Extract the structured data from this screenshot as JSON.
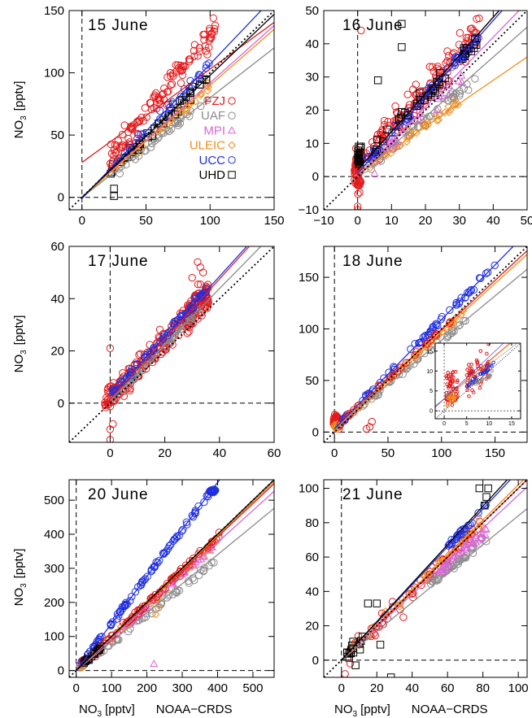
{
  "colors": {
    "FZJ": "#e31a1c",
    "UAF": "#8c8c8c",
    "MPI": "#d966d6",
    "ULEIC": "#f28c1a",
    "UCC": "#1f2ee0",
    "UHD": "#000000"
  },
  "legend": [
    {
      "name": "FZJ",
      "marker": "circle"
    },
    {
      "name": "UAF",
      "marker": "circle"
    },
    {
      "name": "MPI",
      "marker": "triangle"
    },
    {
      "name": "ULEIC",
      "marker": "diamond"
    },
    {
      "name": "UCC",
      "marker": "circle"
    },
    {
      "name": "UHD",
      "marker": "square"
    }
  ],
  "ylabel_base": "NO",
  "ylabel_sub": "3",
  "ylabel_unit": "[pptv]",
  "xlabel_base": "NO",
  "xlabel_sub": "3",
  "xlabel_unit": "[pptv]",
  "xlabel_instrument": "NOAA−CRDS",
  "chart_data": [
    {
      "type": "scatter",
      "title": "15 June",
      "xlim": [
        -10,
        150
      ],
      "ylim": [
        -10,
        150
      ],
      "xticks": [
        0,
        50,
        100,
        150
      ],
      "yticks": [
        0,
        50,
        100,
        150
      ],
      "fits": [
        {
          "series": "FZJ",
          "slope": 0.75,
          "intercept": 28
        },
        {
          "series": "UAF",
          "slope": 0.8,
          "intercept": 0
        },
        {
          "series": "MPI",
          "slope": 0.92,
          "intercept": 0
        },
        {
          "series": "ULEIC",
          "slope": 0.9,
          "intercept": 0
        },
        {
          "series": "UCC",
          "slope": 1.08,
          "intercept": -1
        },
        {
          "series": "UHD",
          "slope": 0.98,
          "intercept": 0
        }
      ],
      "clusters": [
        {
          "series": "UAF",
          "x": [
            22,
            100
          ],
          "slope": 0.8,
          "intercept": 0,
          "spread": 5,
          "n": 45
        },
        {
          "series": "ULEIC",
          "x": [
            22,
            100
          ],
          "slope": 0.9,
          "intercept": 0,
          "spread": 5,
          "n": 40
        },
        {
          "series": "UHD",
          "x": [
            22,
            100
          ],
          "slope": 0.98,
          "intercept": 0,
          "spread": 6,
          "n": 40
        },
        {
          "series": "UCC",
          "x": [
            22,
            100
          ],
          "slope": 1.08,
          "intercept": -1,
          "spread": 5,
          "n": 30
        },
        {
          "series": "FZJ",
          "x": [
            22,
            105
          ],
          "slope": 1.25,
          "intercept": 5,
          "spread": 14,
          "n": 110
        }
      ],
      "points": [
        {
          "series": "UHD",
          "x": [
            25,
            25
          ],
          "y": [
            7,
            1
          ]
        },
        {
          "series": "FZJ",
          "x": [
            101,
            104
          ],
          "y": [
            131,
            138
          ]
        }
      ],
      "inset": null
    },
    {
      "type": "scatter",
      "title": "16 June",
      "xlim": [
        -10,
        50
      ],
      "ylim": [
        -10,
        50
      ],
      "xticks": [
        -10,
        0,
        10,
        20,
        30,
        40,
        50
      ],
      "yticks": [
        -10,
        0,
        10,
        20,
        30,
        40,
        50
      ],
      "fits": [
        {
          "series": "FZJ",
          "slope": 1.15,
          "intercept": 2
        },
        {
          "series": "UAF",
          "slope": 0.9,
          "intercept": 0
        },
        {
          "series": "MPI",
          "slope": 1.05,
          "intercept": 0
        },
        {
          "series": "ULEIC",
          "slope": 0.7,
          "intercept": 1
        },
        {
          "series": "UCC",
          "slope": 1.15,
          "intercept": 1
        },
        {
          "series": "UHD",
          "slope": 1.15,
          "intercept": 2
        }
      ],
      "clusters": [
        {
          "series": "FZJ",
          "x": [
            -1,
            1
          ],
          "slope": 0,
          "intercept": 2,
          "spread": 7,
          "n": 60
        },
        {
          "series": "UHD",
          "x": [
            0,
            1
          ],
          "slope": 0,
          "intercept": 6,
          "spread": 4,
          "n": 25
        },
        {
          "series": "FZJ",
          "x": [
            2,
            36
          ],
          "slope": 1.15,
          "intercept": 3,
          "spread": 6,
          "n": 140
        },
        {
          "series": "UAF",
          "x": [
            2,
            36
          ],
          "slope": 0.85,
          "intercept": 0,
          "spread": 2,
          "n": 50
        },
        {
          "series": "ULEIC",
          "x": [
            2,
            30
          ],
          "slope": 0.72,
          "intercept": 1,
          "spread": 2,
          "n": 35
        },
        {
          "series": "MPI",
          "x": [
            3,
            32
          ],
          "slope": 0.95,
          "intercept": 0,
          "spread": 3,
          "n": 30
        },
        {
          "series": "UCC",
          "x": [
            2,
            36
          ],
          "slope": 1.15,
          "intercept": 1,
          "spread": 2,
          "n": 60
        },
        {
          "series": "UHD",
          "x": [
            5,
            36
          ],
          "slope": 1.1,
          "intercept": 2,
          "spread": 4,
          "n": 40
        }
      ],
      "points": [
        {
          "series": "UHD",
          "x": [
            13,
            13,
            6
          ],
          "y": [
            46,
            39,
            29
          ]
        },
        {
          "series": "MPI",
          "x": [
            5
          ],
          "y": [
            1
          ]
        },
        {
          "series": "FZJ",
          "x": [
            0,
            0,
            1
          ],
          "y": [
            -9,
            -10,
            44
          ]
        }
      ],
      "inset": null
    },
    {
      "type": "scatter",
      "title": "17 June",
      "xlim": [
        -15,
        60
      ],
      "ylim": [
        -15,
        60
      ],
      "xticks": [
        0,
        20,
        40,
        60
      ],
      "yticks": [
        0,
        20,
        40,
        60
      ],
      "fits": [
        {
          "series": "FZJ",
          "slope": 1.15,
          "intercept": 1.5
        },
        {
          "series": "UAF",
          "slope": 1.07,
          "intercept": 1
        },
        {
          "series": "UCC",
          "slope": 1.15,
          "intercept": 2.5
        }
      ],
      "clusters": [
        {
          "series": "FZJ",
          "x": [
            -2,
            5
          ],
          "slope": 0.8,
          "intercept": 3,
          "spread": 6,
          "n": 50
        },
        {
          "series": "FZJ",
          "x": [
            5,
            30
          ],
          "slope": 1.15,
          "intercept": 1,
          "spread": 6,
          "n": 120
        },
        {
          "series": "FZJ",
          "x": [
            28,
            36
          ],
          "slope": 1.1,
          "intercept": 2,
          "spread": 8,
          "n": 110
        },
        {
          "series": "UAF",
          "x": [
            1,
            35
          ],
          "slope": 1.07,
          "intercept": 1,
          "spread": 2,
          "n": 50
        },
        {
          "series": "UCC",
          "x": [
            1,
            35
          ],
          "slope": 1.15,
          "intercept": 3,
          "spread": 2,
          "n": 70
        }
      ],
      "points": [
        {
          "series": "FZJ",
          "x": [
            0,
            0,
            1,
            0
          ],
          "y": [
            -14,
            -10,
            -8,
            21
          ]
        },
        {
          "series": "FZJ",
          "x": [
            32,
            33,
            34,
            30
          ],
          "y": [
            54,
            52,
            50,
            48
          ]
        }
      ],
      "inset": null
    },
    {
      "type": "scatter",
      "title": "18 June",
      "xlim": [
        -10,
        180
      ],
      "ylim": [
        -10,
        180
      ],
      "xticks": [
        0,
        50,
        100,
        150
      ],
      "yticks": [
        0,
        50,
        100,
        150
      ],
      "fits": [
        {
          "series": "FZJ",
          "slope": 0.96,
          "intercept": 3
        },
        {
          "series": "UAF",
          "slope": 0.86,
          "intercept": 3
        },
        {
          "series": "ULEIC",
          "slope": 0.94,
          "intercept": 3
        },
        {
          "series": "UCC",
          "slope": 1.06,
          "intercept": 3
        }
      ],
      "clusters": [
        {
          "series": "FZJ",
          "x": [
            -1,
            5
          ],
          "slope": 0,
          "intercept": 10,
          "spread": 8,
          "n": 60
        },
        {
          "series": "ULEIC",
          "x": [
            0,
            4
          ],
          "slope": 0,
          "intercept": 5,
          "spread": 4,
          "n": 20
        },
        {
          "series": "UAF",
          "x": [
            2,
            125
          ],
          "slope": 0.86,
          "intercept": 3,
          "spread": 3,
          "n": 45
        },
        {
          "series": "ULEIC",
          "x": [
            10,
            125
          ],
          "slope": 0.94,
          "intercept": 3,
          "spread": 3,
          "n": 40
        },
        {
          "series": "UCC",
          "x": [
            5,
            152
          ],
          "slope": 1.06,
          "intercept": 3,
          "spread": 3,
          "n": 65
        },
        {
          "series": "FZJ",
          "x": [
            5,
            110
          ],
          "slope": 0.96,
          "intercept": 3,
          "spread": 3,
          "n": 30
        }
      ],
      "points": [
        {
          "series": "FZJ",
          "x": [
            35,
            30,
            33
          ],
          "y": [
            10,
            3,
            5
          ]
        }
      ],
      "inset": {
        "xlim": [
          -2,
          17
        ],
        "ylim": [
          -2,
          17
        ],
        "xticks": [
          0,
          5,
          10,
          15
        ],
        "yticks": [
          0,
          5,
          10,
          15
        ]
      }
    },
    {
      "type": "scatter",
      "title": "20 June",
      "xlim": [
        -20,
        560
      ],
      "ylim": [
        -20,
        560
      ],
      "xticks": [
        0,
        100,
        200,
        300,
        400,
        500
      ],
      "yticks": [
        0,
        100,
        200,
        300,
        400,
        500
      ],
      "fits": [
        {
          "series": "FZJ",
          "slope": 0.98,
          "intercept": 0
        },
        {
          "series": "UAF",
          "slope": 0.85,
          "intercept": 0
        },
        {
          "series": "MPI",
          "slope": 0.94,
          "intercept": 0
        },
        {
          "series": "ULEIC",
          "slope": 0.99,
          "intercept": 0
        },
        {
          "series": "UCC",
          "slope": 1.38,
          "intercept": 0
        },
        {
          "series": "UHD",
          "slope": 1.0,
          "intercept": 0
        }
      ],
      "clusters": [
        {
          "series": "UCC",
          "x": [
            5,
            378
          ],
          "slope": 1.38,
          "intercept": 0,
          "spread": 8,
          "n": 90
        },
        {
          "series": "UCC",
          "x": [
            378,
            395
          ],
          "slope": 0,
          "intercept": 528,
          "spread": 5,
          "n": 25
        },
        {
          "series": "UAF",
          "x": [
            10,
            400
          ],
          "slope": 0.82,
          "intercept": 0,
          "spread": 10,
          "n": 60
        },
        {
          "series": "MPI",
          "x": [
            10,
            390
          ],
          "slope": 0.94,
          "intercept": 0,
          "spread": 8,
          "n": 50
        },
        {
          "series": "ULEIC",
          "x": [
            10,
            400
          ],
          "slope": 0.96,
          "intercept": 0,
          "spread": 10,
          "n": 45
        },
        {
          "series": "FZJ",
          "x": [
            10,
            405
          ],
          "slope": 0.98,
          "intercept": 0,
          "spread": 12,
          "n": 80
        },
        {
          "series": "UHD",
          "x": [
            10,
            80
          ],
          "slope": 0.98,
          "intercept": 0,
          "spread": 5,
          "n": 15
        }
      ],
      "points": [
        {
          "series": "MPI",
          "x": [
            220
          ],
          "y": [
            20
          ]
        },
        {
          "series": "UAF",
          "x": [
            225
          ],
          "y": [
            180
          ]
        },
        {
          "series": "ULEIC",
          "x": [
            225,
            235
          ],
          "y": [
            165,
            190
          ]
        }
      ],
      "inset": null
    },
    {
      "type": "scatter",
      "title": "21 June",
      "xlim": [
        -10,
        105
      ],
      "ylim": [
        -10,
        105
      ],
      "xticks": [
        0,
        20,
        40,
        60,
        80,
        100
      ],
      "yticks": [
        0,
        20,
        40,
        60,
        80,
        100
      ],
      "fits": [
        {
          "series": "FZJ",
          "slope": 1.0,
          "intercept": 0
        },
        {
          "series": "UAF",
          "slope": 0.84,
          "intercept": 0
        },
        {
          "series": "MPI",
          "slope": 0.96,
          "intercept": 0
        },
        {
          "series": "ULEIC",
          "slope": 1.02,
          "intercept": 0
        },
        {
          "series": "UCC",
          "slope": 1.1,
          "intercept": 0
        },
        {
          "series": "UHD",
          "slope": 1.12,
          "intercept": 0
        }
      ],
      "clusters": [
        {
          "series": "FZJ",
          "x": [
            2,
            80
          ],
          "slope": 1.0,
          "intercept": 0,
          "spread": 5,
          "n": 60
        },
        {
          "series": "UAF",
          "x": [
            50,
            82
          ],
          "slope": 0.84,
          "intercept": 2,
          "spread": 3,
          "n": 45
        },
        {
          "series": "ULEIC",
          "x": [
            5,
            80
          ],
          "slope": 1.02,
          "intercept": 0,
          "spread": 5,
          "n": 45
        },
        {
          "series": "MPI",
          "x": [
            55,
            82
          ],
          "slope": 0.9,
          "intercept": 2,
          "spread": 3,
          "n": 35
        },
        {
          "series": "UCC",
          "x": [
            60,
            82
          ],
          "slope": 1.1,
          "intercept": 0,
          "spread": 2,
          "n": 25
        },
        {
          "series": "UHD",
          "x": [
            3,
            12
          ],
          "slope": 1.0,
          "intercept": 0,
          "spread": 6,
          "n": 15
        }
      ],
      "points": [
        {
          "series": "UHD",
          "x": [
            15,
            20,
            22,
            78,
            83,
            82,
            81
          ],
          "y": [
            33,
            33,
            9,
            100,
            100,
            95,
            90
          ]
        },
        {
          "series": "FZJ",
          "x": [
            2,
            5,
            35,
            50
          ],
          "y": [
            -8,
            -2,
            25,
            50
          ]
        },
        {
          "series": "UHD",
          "x": [
            8,
            28
          ],
          "y": [
            -3,
            -10
          ]
        }
      ],
      "inset": null
    }
  ]
}
